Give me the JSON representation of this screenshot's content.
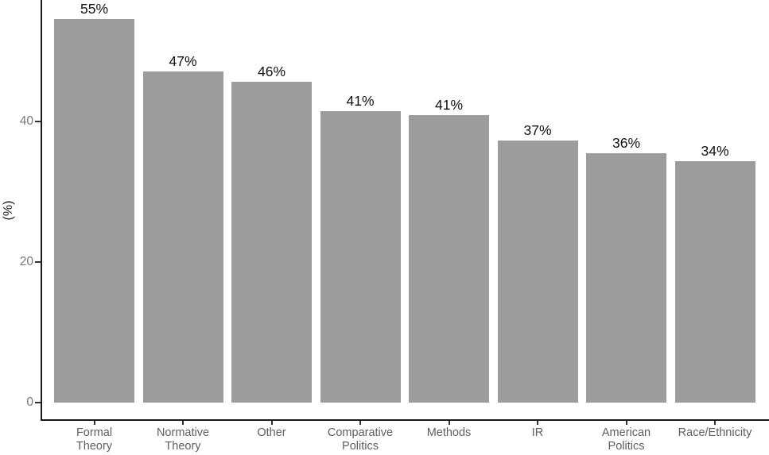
{
  "chart_data": {
    "type": "bar",
    "title": "",
    "xlabel": "",
    "ylabel": "(%)",
    "ylim": [
      0,
      57
    ],
    "grid": "off",
    "legend": "none",
    "bar_color": "#9c9c9c",
    "axis_color": "#1a1a1a",
    "yticks": [
      {
        "value": 0,
        "label": "0"
      },
      {
        "value": 20,
        "label": "20"
      },
      {
        "value": 40,
        "label": "40"
      }
    ],
    "categories": [
      "Formal Theory",
      "Normative Theory",
      "Other",
      "Comparative Politics",
      "Methods",
      "IR",
      "American Politics",
      "Race/Ethnicity"
    ],
    "values": [
      55,
      47,
      46,
      41,
      41,
      37,
      36,
      34
    ],
    "bars": [
      {
        "category": "Formal Theory",
        "category_lines": [
          "Formal",
          "Theory"
        ],
        "value": 55,
        "value_precise": 54.6,
        "label": "55%"
      },
      {
        "category": "Normative Theory",
        "category_lines": [
          "Normative",
          "Theory"
        ],
        "value": 47,
        "value_precise": 47.1,
        "label": "47%"
      },
      {
        "category": "Other",
        "category_lines": [
          "Other"
        ],
        "value": 46,
        "value_precise": 45.7,
        "label": "46%"
      },
      {
        "category": "Comparative Politics",
        "category_lines": [
          "Comparative",
          "Politics"
        ],
        "value": 41,
        "value_precise": 41.5,
        "label": "41%"
      },
      {
        "category": "Methods",
        "category_lines": [
          "Methods"
        ],
        "value": 41,
        "value_precise": 40.9,
        "label": "41%"
      },
      {
        "category": "IR",
        "category_lines": [
          "IR"
        ],
        "value": 37,
        "value_precise": 37.3,
        "label": "37%"
      },
      {
        "category": "American Politics",
        "category_lines": [
          "American",
          "Politics"
        ],
        "value": 36,
        "value_precise": 35.5,
        "label": "36%"
      },
      {
        "category": "Race/Ethnicity",
        "category_lines": [
          "Race/Ethnicity"
        ],
        "value": 34,
        "value_precise": 34.3,
        "label": "34%"
      }
    ]
  }
}
